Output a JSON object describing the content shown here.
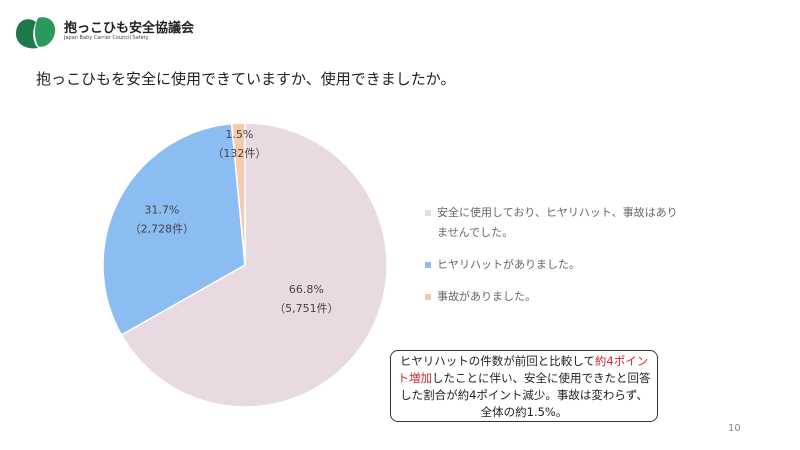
{
  "header": {
    "org_name": "抱っこひも安全協議会",
    "org_name_en": "Japan Baby Carrier Council Safety"
  },
  "chart_data": {
    "type": "pie",
    "title": "抱っこひもを安全に使用できていますか、使用できましたか。",
    "categories": [
      "安全に使用しており、ヒヤリハット、事故はありませんでした。",
      "ヒヤリハットがありました。",
      "事故がありました。"
    ],
    "values": [
      66.8,
      31.7,
      1.5
    ],
    "value_labels": [
      "66.8%",
      "31.7%",
      "1.5%"
    ],
    "counts": [
      5751,
      2728,
      132
    ],
    "count_labels": [
      "（5,751件）",
      "（2,728件）",
      "（132件）"
    ],
    "colors": [
      "#e9d9e1",
      "#8bbdf2",
      "#f5cbad"
    ],
    "legend": "right"
  },
  "annotation": {
    "parts": [
      "ヒヤリハットの件数が前回と比較して",
      "約4ポイント増加",
      "したことに伴い、安全に使用できたと回答した割合が約4ポイント減少。事故は変わらず、全体の約1.5%。"
    ]
  },
  "page_number": "10"
}
